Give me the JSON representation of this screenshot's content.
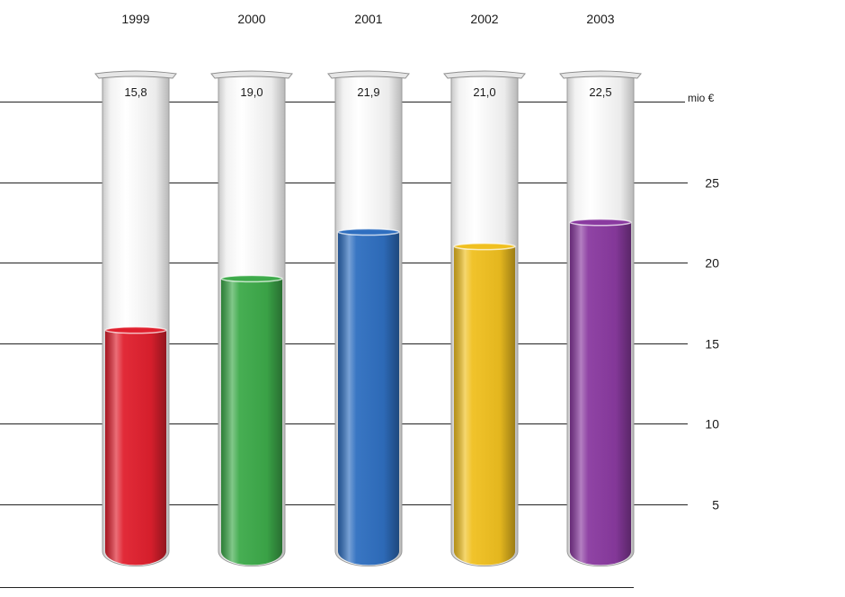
{
  "chart_data": {
    "type": "bar",
    "categories": [
      "1999",
      "2000",
      "2001",
      "2002",
      "2003"
    ],
    "values": [
      15.8,
      19.0,
      21.9,
      21.0,
      22.5
    ],
    "value_labels": [
      "15,8",
      "19,0",
      "21,9",
      "21,0",
      "22,5"
    ],
    "ylabel": "mio €",
    "y_ticks": [
      "5",
      "10",
      "15",
      "20",
      "25"
    ],
    "ylim": [
      0,
      30
    ],
    "grid": true,
    "colors": [
      "#e0202e",
      "#3daa4a",
      "#2f6fc0",
      "#f0c020",
      "#8a3aa0"
    ]
  }
}
